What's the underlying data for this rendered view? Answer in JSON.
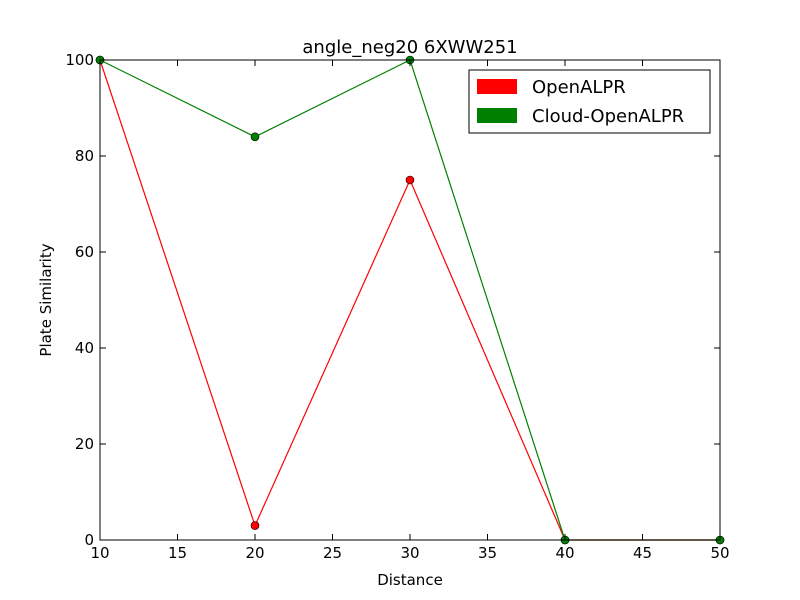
{
  "chart_data": {
    "type": "line",
    "title": "angle_neg20 6XWW251",
    "xlabel": "Distance",
    "ylabel": "Plate Similarity",
    "x": [
      10,
      20,
      30,
      40,
      50
    ],
    "xlim": [
      10,
      50
    ],
    "ylim": [
      0,
      100
    ],
    "xticks": [
      10,
      15,
      20,
      25,
      30,
      35,
      40,
      45,
      50
    ],
    "yticks": [
      0,
      20,
      40,
      60,
      80,
      100
    ],
    "grid": false,
    "legend_position": "top-right",
    "series": [
      {
        "name": "OpenALPR",
        "color": "#ff0000",
        "values": [
          100,
          3,
          75,
          0,
          0
        ]
      },
      {
        "name": "Cloud-OpenALPR",
        "color": "#008000",
        "values": [
          100,
          84,
          100,
          0,
          0
        ]
      }
    ]
  }
}
